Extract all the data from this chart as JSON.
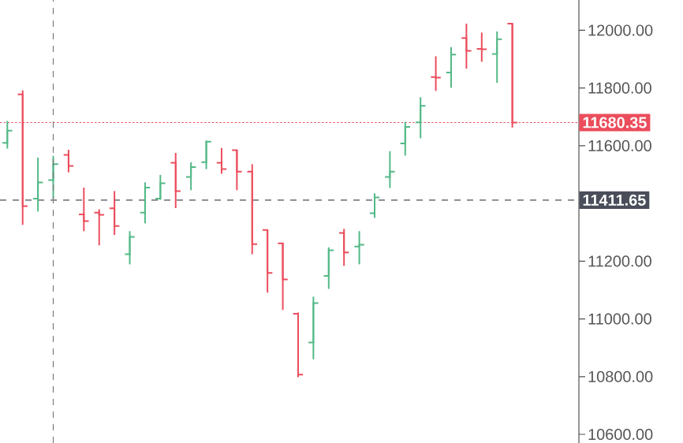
{
  "chart_data": {
    "type": "candlestick",
    "categories": [
      null,
      null,
      null,
      null,
      null,
      null,
      null,
      null,
      null,
      null,
      null,
      null,
      null,
      null,
      null,
      null,
      null,
      null,
      null,
      null,
      null,
      null,
      null,
      null,
      null,
      null,
      null,
      null,
      null,
      null,
      null,
      null,
      null,
      null
    ],
    "ohlc": [
      [
        11610,
        11686,
        11590,
        11652
      ],
      [
        11778,
        11792,
        11326,
        11391
      ],
      [
        11417,
        11559,
        11372,
        11473
      ],
      [
        11481,
        11565,
        11417,
        11536
      ],
      [
        11568,
        11586,
        11508,
        11530
      ],
      [
        11362,
        11455,
        11304,
        11339
      ],
      [
        11368,
        11380,
        11255,
        11361
      ],
      [
        11383,
        11443,
        11291,
        11322
      ],
      [
        11224,
        11304,
        11189,
        11284
      ],
      [
        11368,
        11473,
        11331,
        11455
      ],
      [
        11417,
        11499,
        11413,
        11470
      ],
      [
        11541,
        11575,
        11384,
        11443
      ],
      [
        11492,
        11543,
        11446,
        11526
      ],
      [
        11543,
        11618,
        11519,
        11614
      ],
      [
        11541,
        11592,
        11503,
        11519
      ],
      [
        11585,
        11586,
        11446,
        11510
      ],
      [
        11510,
        11536,
        11224,
        11259
      ],
      [
        11308,
        11308,
        11091,
        11159
      ],
      [
        11262,
        11264,
        11031,
        11137
      ],
      [
        11018,
        11022,
        10798,
        10807
      ],
      [
        10918,
        11077,
        10860,
        11055
      ],
      [
        11149,
        11248,
        11104,
        11238
      ],
      [
        11298,
        11312,
        11184,
        11230
      ],
      [
        11251,
        11304,
        11189,
        11257
      ],
      [
        11366,
        11435,
        11350,
        11421
      ],
      [
        11492,
        11581,
        11454,
        11510
      ],
      [
        11608,
        11683,
        11566,
        11665
      ],
      [
        11681,
        11768,
        11626,
        11738
      ],
      [
        11838,
        11910,
        11790,
        11836
      ],
      [
        11854,
        11942,
        11801,
        11916
      ],
      [
        11973,
        12023,
        11867,
        11929
      ],
      [
        11936,
        11992,
        11891,
        11934
      ],
      [
        11918,
        11996,
        11818,
        11969
      ],
      [
        12023,
        12023,
        11663,
        11680.35
      ]
    ],
    "colors": [
      "#53b987",
      "#eb4d5c",
      "#53b987",
      "#53b987",
      "#eb4d5c",
      "#eb4d5c",
      "#eb4d5c",
      "#eb4d5c",
      "#53b987",
      "#53b987",
      "#53b987",
      "#eb4d5c",
      "#53b987",
      "#53b987",
      "#eb4d5c",
      "#eb4d5c",
      "#eb4d5c",
      "#eb4d5c",
      "#eb4d5c",
      "#eb4d5c",
      "#53b987",
      "#53b987",
      "#eb4d5c",
      "#53b987",
      "#53b987",
      "#53b987",
      "#53b987",
      "#53b987",
      "#eb4d5c",
      "#53b987",
      "#eb4d5c",
      "#eb4d5c",
      "#53b987",
      "#eb4d5c"
    ],
    "ylim": [
      10570,
      12105
    ],
    "yticks": [
      {
        "value": 10600,
        "label": "10600.00"
      },
      {
        "value": 10800,
        "label": "10800.00"
      },
      {
        "value": 11000,
        "label": "11000.00"
      },
      {
        "value": 11200,
        "label": "11200.00"
      },
      {
        "value": 11600,
        "label": "11600.00"
      },
      {
        "value": 11800,
        "label": "11800.00"
      },
      {
        "value": 12000,
        "label": "12000.00"
      }
    ],
    "tick_labels": "y",
    "grid": false,
    "ref_lines": [
      {
        "axis": "y",
        "value": 11680.35,
        "label": "11680.35",
        "color": "#eb4d5c",
        "line_style": "dotted"
      },
      {
        "axis": "y",
        "value": 11411.65,
        "label": "11411.65",
        "color": "#4a4e5a",
        "line_style": "dashed"
      }
    ]
  }
}
